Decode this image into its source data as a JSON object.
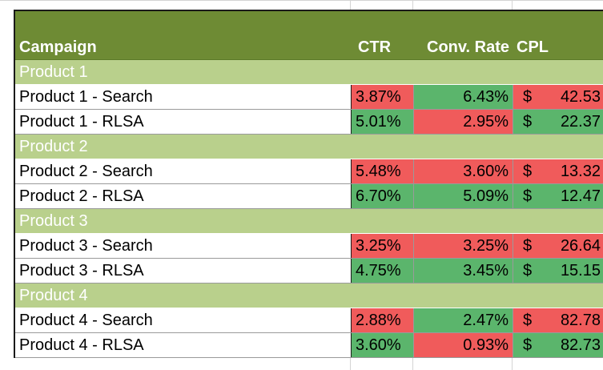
{
  "colors": {
    "header": "#6e8b34",
    "group": "#b9d08c",
    "bad": "#f05b5b",
    "good": "#5bb56c"
  },
  "header": {
    "campaign": "Campaign",
    "ctr": "CTR",
    "conv_rate": "Conv. Rate",
    "cpl": "CPL"
  },
  "groups": [
    {
      "name": "Product 1",
      "rows": [
        {
          "campaign": "Product 1 - Search",
          "ctr": "3.87%",
          "ctr_status": "bad",
          "conv": "6.43%",
          "conv_status": "good",
          "cpl_symbol": "$",
          "cpl": "42.53",
          "cpl_status": "bad"
        },
        {
          "campaign": "Product 1 - RLSA",
          "ctr": "5.01%",
          "ctr_status": "good",
          "conv": "2.95%",
          "conv_status": "bad",
          "cpl_symbol": "$",
          "cpl": "22.37",
          "cpl_status": "good"
        }
      ]
    },
    {
      "name": "Product 2",
      "rows": [
        {
          "campaign": "Product 2 - Search",
          "ctr": "5.48%",
          "ctr_status": "bad",
          "conv": "3.60%",
          "conv_status": "bad",
          "cpl_symbol": "$",
          "cpl": "13.32",
          "cpl_status": "bad"
        },
        {
          "campaign": "Product 2 - RLSA",
          "ctr": "6.70%",
          "ctr_status": "good",
          "conv": "5.09%",
          "conv_status": "good",
          "cpl_symbol": "$",
          "cpl": "12.47",
          "cpl_status": "good"
        }
      ]
    },
    {
      "name": "Product 3",
      "rows": [
        {
          "campaign": "Product 3 - Search",
          "ctr": "3.25%",
          "ctr_status": "bad",
          "conv": "3.25%",
          "conv_status": "bad",
          "cpl_symbol": "$",
          "cpl": "26.64",
          "cpl_status": "bad"
        },
        {
          "campaign": "Product 3 - RLSA",
          "ctr": "4.75%",
          "ctr_status": "good",
          "conv": "3.45%",
          "conv_status": "good",
          "cpl_symbol": "$",
          "cpl": "15.15",
          "cpl_status": "good"
        }
      ]
    },
    {
      "name": "Product 4",
      "rows": [
        {
          "campaign": "Product 4 - Search",
          "ctr": "2.88%",
          "ctr_status": "bad",
          "conv": "2.47%",
          "conv_status": "good",
          "cpl_symbol": "$",
          "cpl": "82.78",
          "cpl_status": "bad"
        },
        {
          "campaign": "Product 4 - RLSA",
          "ctr": "3.60%",
          "ctr_status": "good",
          "conv": "0.93%",
          "conv_status": "bad",
          "cpl_symbol": "$",
          "cpl": "82.73",
          "cpl_status": "good"
        }
      ]
    }
  ]
}
